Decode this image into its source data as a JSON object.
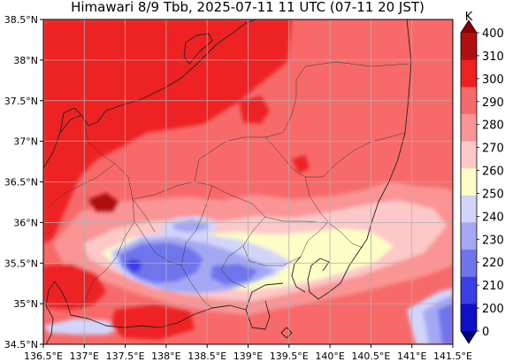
{
  "title": "Himawari 8/9 Tbb, 2025-07-11 11 UTC (07-11 20 JST)",
  "colorbar": {
    "unit": "K",
    "ticks": [
      "400",
      "310",
      "300",
      "290",
      "280",
      "270",
      "260",
      "250",
      "240",
      "230",
      "220",
      "210",
      "200",
      "0"
    ],
    "bands": [
      {
        "from": 310,
        "to": 400,
        "color": "#8b0000"
      },
      {
        "from": 300,
        "to": 310,
        "color": "#b01010"
      },
      {
        "from": 290,
        "to": 300,
        "color": "#ee2020"
      },
      {
        "from": 280,
        "to": 290,
        "color": "#f86a6a"
      },
      {
        "from": 270,
        "to": 280,
        "color": "#fb9494"
      },
      {
        "from": 260,
        "to": 270,
        "color": "#fdc8c8"
      },
      {
        "from": 250,
        "to": 260,
        "color": "#fdfdc6"
      },
      {
        "from": 240,
        "to": 250,
        "color": "#d2d4fa"
      },
      {
        "from": 230,
        "to": 240,
        "color": "#a4a8f4"
      },
      {
        "from": 220,
        "to": 230,
        "color": "#7074ec"
      },
      {
        "from": 210,
        "to": 220,
        "color": "#3a3ee4"
      },
      {
        "from": 200,
        "to": 210,
        "color": "#1010c8"
      },
      {
        "from": 0,
        "to": 200,
        "color": "#000080"
      }
    ]
  },
  "axes": {
    "x_ticks": [
      "136.5°E",
      "137°E",
      "137.5°E",
      "138°E",
      "138.5°E",
      "139°E",
      "139.5°E",
      "140°E",
      "140.5°E",
      "141°E",
      "141.5°E"
    ],
    "y_ticks": [
      "38.5°N",
      "38°N",
      "37.5°N",
      "37°N",
      "36.5°N",
      "36°N",
      "35.5°N",
      "35°N",
      "34.5°N"
    ],
    "lon_range": [
      136.5,
      141.5
    ],
    "lat_range": [
      34.5,
      38.5
    ],
    "grid": true
  }
}
